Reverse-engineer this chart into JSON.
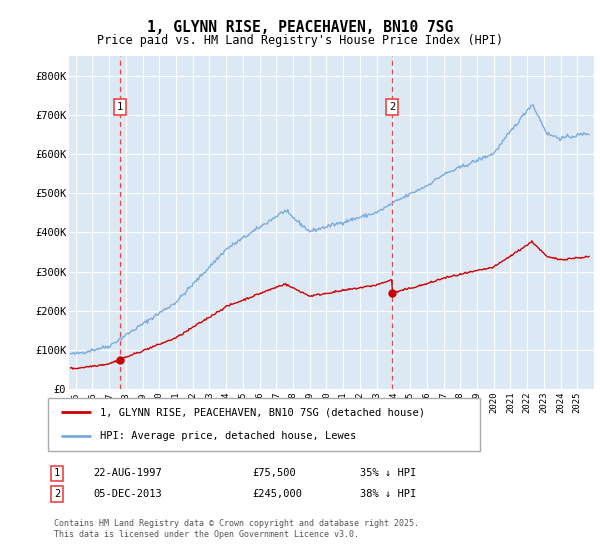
{
  "title": "1, GLYNN RISE, PEACEHAVEN, BN10 7SG",
  "subtitle": "Price paid vs. HM Land Registry's House Price Index (HPI)",
  "ylim": [
    0,
    850000
  ],
  "yticks": [
    0,
    100000,
    200000,
    300000,
    400000,
    500000,
    600000,
    700000,
    800000
  ],
  "ytick_labels": [
    "£0",
    "£100K",
    "£200K",
    "£300K",
    "£400K",
    "£500K",
    "£600K",
    "£700K",
    "£800K"
  ],
  "background_color": "#dce9f5",
  "grid_color": "#ffffff",
  "sale1_date": "22-AUG-1997",
  "sale1_price": 75500,
  "sale1_year": 1997.64,
  "sale2_date": "05-DEC-2013",
  "sale2_price": 245000,
  "sale2_year": 2013.92,
  "legend_label1": "1, GLYNN RISE, PEACEHAVEN, BN10 7SG (detached house)",
  "legend_label2": "HPI: Average price, detached house, Lewes",
  "footer": "Contains HM Land Registry data © Crown copyright and database right 2025.\nThis data is licensed under the Open Government Licence v3.0.",
  "line1_color": "#cc0000",
  "line2_color": "#7aacdc",
  "vline_color": "#ee4444",
  "xlim_start": 1994.6,
  "xlim_end": 2026.0
}
